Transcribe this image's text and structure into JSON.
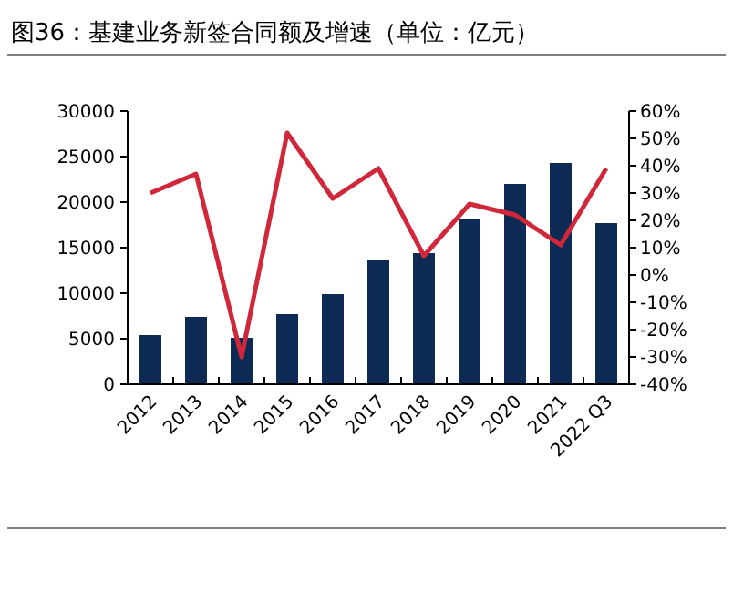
{
  "chart_data": {
    "type": "bar",
    "title": "图36：基建业务新签合同额及增速（单位：亿元）",
    "categories": [
      "2012",
      "2013",
      "2014",
      "2015",
      "2016",
      "2017",
      "2018",
      "2019",
      "2020",
      "2021",
      "2022 Q3"
    ],
    "series": [
      {
        "color": "#0d2a55",
        "values": [
          5400,
          7400,
          5100,
          7700,
          9900,
          13600,
          14400,
          18100,
          22000,
          24300,
          17700
        ]
      },
      {
        "type": "line",
        "axis": "y2",
        "color": "#d0283a",
        "values": [
          30,
          37,
          -30,
          52,
          28,
          39,
          7,
          26,
          22,
          11,
          39
        ]
      }
    ],
    "ylim": [
      0,
      30000
    ],
    "yticks": [
      0,
      5000,
      10000,
      15000,
      20000,
      25000,
      30000
    ],
    "y2lim": [
      -40,
      60
    ],
    "y2ticks": [
      {
        "value": 60,
        "label": "60%"
      },
      {
        "value": 50,
        "label": "50%"
      },
      {
        "value": 40,
        "label": "40%"
      },
      {
        "value": 30,
        "label": "30%"
      },
      {
        "value": 20,
        "label": "20%"
      },
      {
        "value": 10,
        "label": "10%"
      },
      {
        "value": 0,
        "label": "0%"
      },
      {
        "value": -10,
        "label": "-10%"
      },
      {
        "value": -20,
        "label": "-20%"
      },
      {
        "value": -30,
        "label": "-30%"
      },
      {
        "value": -40,
        "label": "-40%"
      }
    ]
  }
}
